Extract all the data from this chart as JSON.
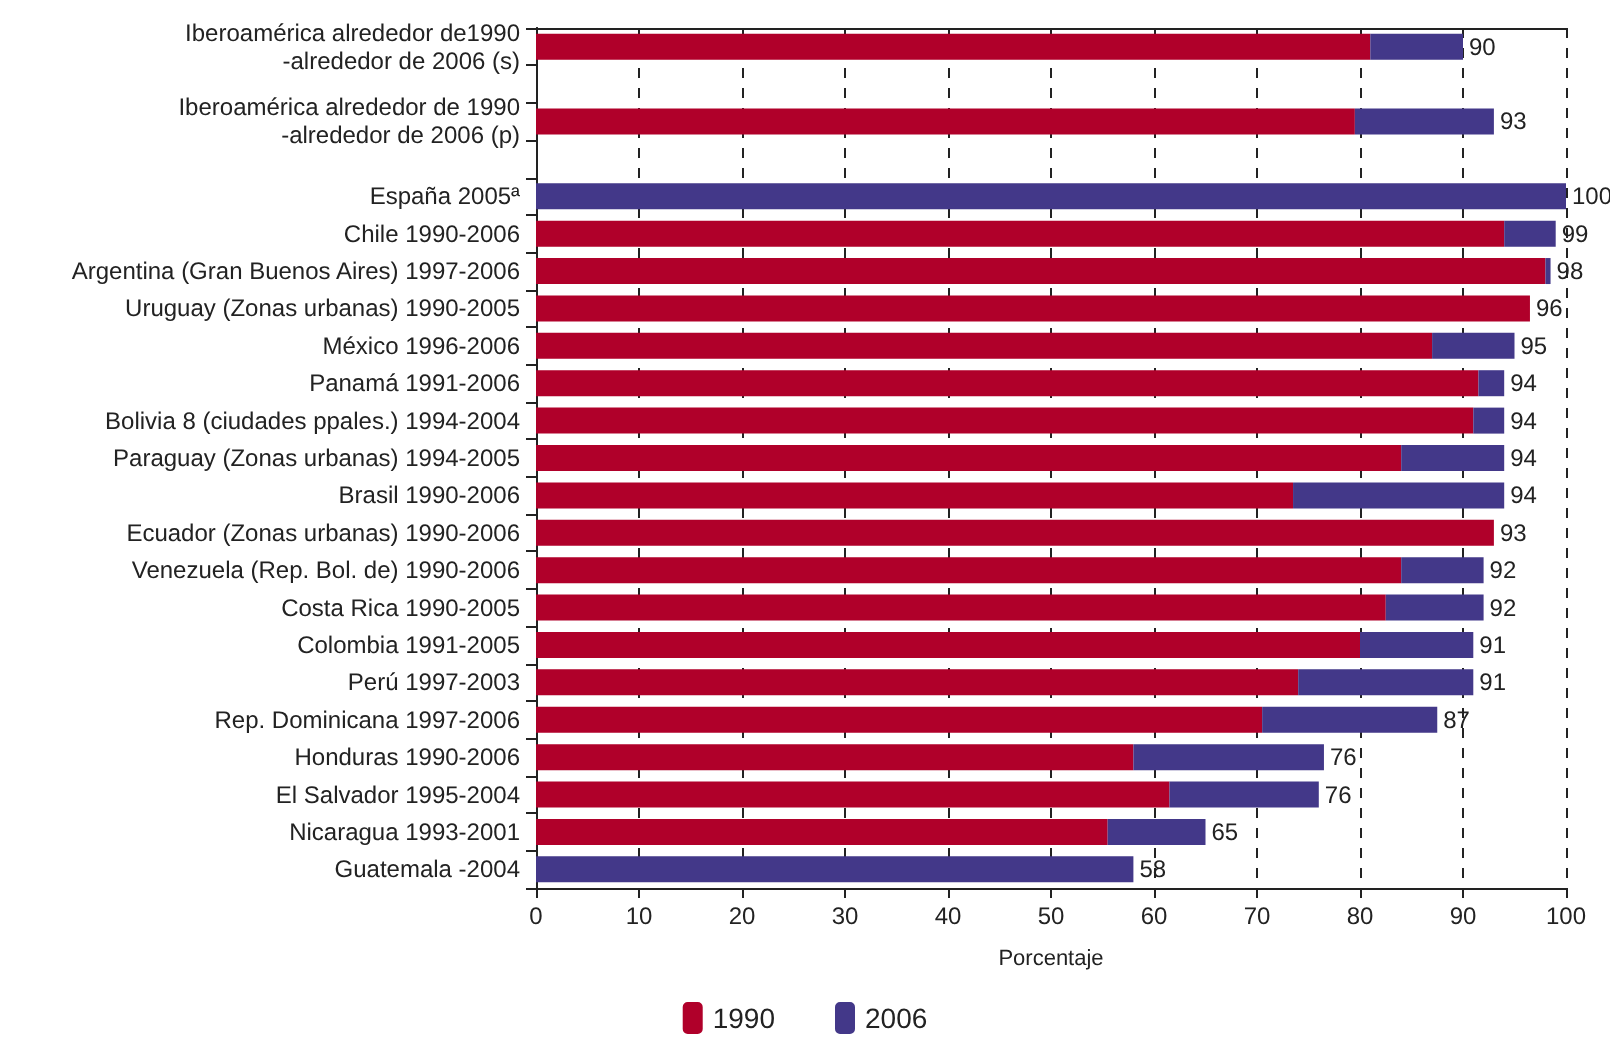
{
  "chart_data": {
    "type": "bar",
    "orientation": "horizontal",
    "stacked": true,
    "categories": [
      "Iberoamérica alrededor de1990\n-alrededor de 2006 (s)",
      null,
      "Iberoamérica alrededor de 1990\n-alrededor de 2006 (p)",
      null,
      "España 2005ª",
      "Chile 1990-2006",
      "Argentina (Gran Buenos Aires) 1997-2006",
      "Uruguay (Zonas urbanas) 1990-2005",
      "México 1996-2006",
      "Panamá 1991-2006",
      "Bolivia 8 (ciudades ppales.) 1994-2004",
      "Paraguay (Zonas urbanas) 1994-2005",
      "Brasil 1990-2006",
      "Ecuador (Zonas urbanas) 1990-2006",
      "Venezuela (Rep. Bol. de) 1990-2006",
      "Costa Rica 1990-2005",
      "Colombia 1991-2005",
      "Perú 1997-2003",
      "Rep. Dominicana 1997-2006",
      "Honduras 1990-2006",
      "El Salvador 1995-2004",
      "Nicaragua 1993-2001",
      "Guatemala -2004"
    ],
    "series": [
      {
        "name": "1990",
        "color": "#b0002a",
        "values": [
          81,
          null,
          79.5,
          null,
          null,
          94,
          98,
          96.5,
          87,
          91.5,
          91,
          84,
          73.5,
          93,
          84,
          82.5,
          80,
          74,
          70.5,
          58,
          61.5,
          55.5,
          null
        ]
      },
      {
        "name": "2006",
        "color": "#433889",
        "values": [
          9,
          null,
          13.5,
          null,
          100,
          5,
          0.5,
          null,
          8,
          2.5,
          3,
          10,
          20.5,
          null,
          8,
          9.5,
          11,
          17,
          17,
          18.5,
          14.5,
          9.5,
          58
        ]
      }
    ],
    "totals": [
      "90",
      null,
      "93",
      null,
      "100",
      "99",
      "98",
      "96",
      "95",
      "94",
      "94",
      "94",
      "94",
      "93",
      "92",
      "92",
      "91",
      "91",
      "87",
      "76",
      "76",
      "65",
      "58"
    ],
    "xlabel": "Porcentaje",
    "xlim": [
      0,
      100
    ],
    "xticks": [
      0,
      10,
      20,
      30,
      40,
      50,
      60,
      70,
      80,
      90,
      100
    ],
    "grid": "x",
    "legend": "bottom"
  }
}
